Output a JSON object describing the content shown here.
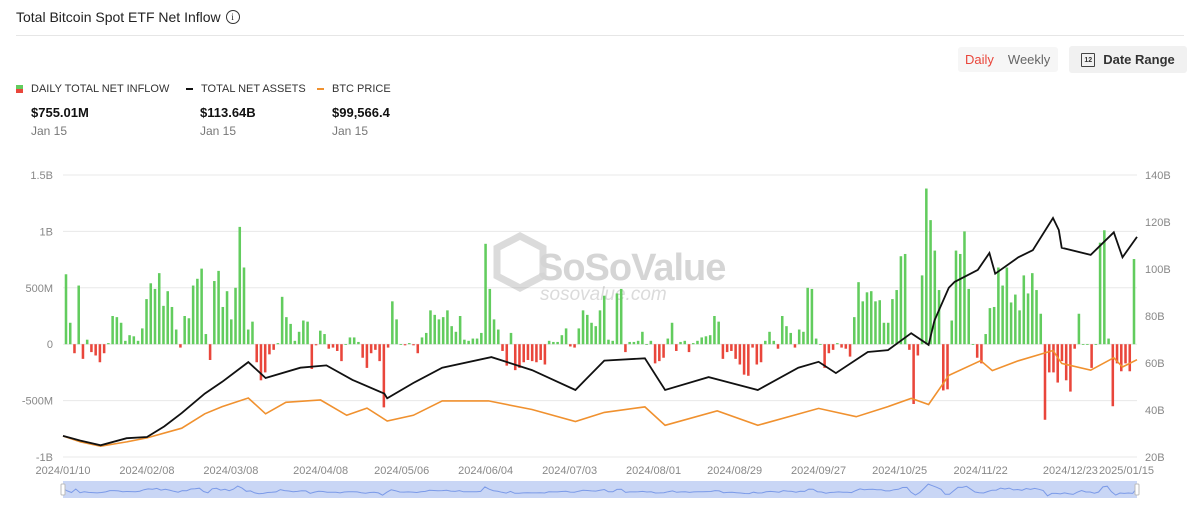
{
  "header": {
    "title": "Total Bitcoin Spot ETF Net Inflow",
    "info_icon": "info-circle-icon"
  },
  "controls": {
    "daily_label": "Daily",
    "weekly_label": "Weekly",
    "active": "Daily",
    "date_range_label": "Date Range",
    "calendar_icon": "calendar-icon",
    "calendar_day": "12"
  },
  "legend": [
    {
      "label": "DAILY TOTAL NET INFLOW",
      "value": "$755.01M",
      "date": "Jan 15"
    },
    {
      "label": "TOTAL NET ASSETS",
      "value": "$113.64B",
      "date": "Jan 15"
    },
    {
      "label": "BTC PRICE",
      "value": "$99,566.4",
      "date": "Jan 15"
    }
  ],
  "watermark": {
    "brand": "SoSoValue",
    "site": "sosovalue.com"
  },
  "colors": {
    "inflow": "#62cc5e",
    "outflow": "#e9463b",
    "assets": "#111111",
    "price": "#f0912f",
    "navigator": "#c9d6f5"
  },
  "chart_data": {
    "type": "bar+line",
    "x_range": [
      "2024/01/10",
      "2025/01/15"
    ],
    "x_ticks": [
      "2024/01/10",
      "2024/02/08",
      "2024/03/08",
      "2024/04/08",
      "2024/05/06",
      "2024/06/04",
      "2024/07/03",
      "2024/08/01",
      "2024/08/29",
      "2024/09/27",
      "2024/10/25",
      "2024/11/22",
      "2024/12/23",
      "2025/01/15"
    ],
    "left_axis": {
      "ticks": [
        "1.5B",
        "1B",
        "500M",
        "0",
        "-500M",
        "-1B"
      ],
      "ylim_millions": [
        -1000,
        1500
      ]
    },
    "right_axis": {
      "ticks": [
        "140B",
        "120B",
        "100B",
        "80B",
        "60B",
        "40B",
        "20B"
      ],
      "ylim_billions": [
        20,
        140
      ]
    },
    "grid": true,
    "series": [
      {
        "name": "DAILY TOTAL NET INFLOW",
        "type": "bar",
        "unit": "USD millions",
        "values": [
          620,
          190,
          -80,
          520,
          -130,
          40,
          -70,
          -100,
          -160,
          -80,
          10,
          250,
          240,
          190,
          30,
          80,
          70,
          30,
          140,
          400,
          540,
          490,
          630,
          340,
          470,
          330,
          130,
          -30,
          250,
          230,
          520,
          580,
          670,
          90,
          -140,
          560,
          650,
          330,
          470,
          220,
          500,
          1040,
          680,
          130,
          200,
          -160,
          -320,
          -250,
          -90,
          -50,
          10,
          420,
          240,
          180,
          30,
          110,
          210,
          200,
          -220,
          -10,
          120,
          90,
          -40,
          -30,
          -60,
          -150,
          0,
          60,
          60,
          20,
          -120,
          -210,
          -80,
          -50,
          -150,
          -560,
          -30,
          380,
          220,
          0,
          -10,
          10,
          -10,
          -80,
          60,
          100,
          300,
          260,
          220,
          240,
          300,
          160,
          110,
          250,
          40,
          30,
          50,
          50,
          100,
          890,
          490,
          220,
          130,
          -60,
          -190,
          100,
          -230,
          -210,
          -160,
          -140,
          -150,
          -160,
          -140,
          -180,
          30,
          20,
          20,
          80,
          140,
          -20,
          -30,
          140,
          300,
          260,
          190,
          160,
          300,
          430,
          40,
          30,
          450,
          490,
          -70,
          20,
          20,
          30,
          110,
          0,
          30,
          -170,
          -150,
          -120,
          50,
          190,
          -60,
          20,
          30,
          -70,
          10,
          30,
          60,
          70,
          80,
          250,
          200,
          -130,
          -70,
          -60,
          -130,
          -180,
          -270,
          -280,
          -30,
          -180,
          -160,
          30,
          110,
          30,
          -40,
          250,
          160,
          100,
          -30,
          130,
          110,
          500,
          490,
          50,
          0,
          -210,
          -80,
          -50,
          10,
          -30,
          -40,
          -110,
          240,
          550,
          380,
          460,
          470,
          380,
          390,
          190,
          190,
          400,
          480,
          780,
          800,
          -50,
          -530,
          -100,
          610,
          1380,
          1100,
          830,
          480,
          -410,
          -400,
          210,
          830,
          800,
          1000,
          490,
          0,
          -120,
          -170,
          90,
          320,
          330,
          680,
          520,
          680,
          370,
          440,
          300,
          610,
          450,
          630,
          480,
          270,
          -670,
          -250,
          -250,
          -340,
          -150,
          -320,
          -420,
          -40,
          270,
          0,
          0,
          -210,
          0,
          900,
          1010,
          50,
          -550,
          -170,
          -240,
          -170,
          -240,
          755
        ]
      },
      {
        "name": "TOTAL NET ASSETS",
        "type": "line",
        "unit": "USD billions",
        "points": [
          [
            "2024-01-10",
            29
          ],
          [
            "2024-01-16",
            27
          ],
          [
            "2024-01-23",
            25
          ],
          [
            "2024-02-01",
            28
          ],
          [
            "2024-02-08",
            28.5
          ],
          [
            "2024-02-14",
            33
          ],
          [
            "2024-02-20",
            38.7
          ],
          [
            "2024-02-28",
            47
          ],
          [
            "2024-03-05",
            52
          ],
          [
            "2024-03-14",
            60.4
          ],
          [
            "2024-03-20",
            53.6
          ],
          [
            "2024-04-01",
            58
          ],
          [
            "2024-04-10",
            59
          ],
          [
            "2024-04-19",
            52.8
          ],
          [
            "2024-04-30",
            47
          ],
          [
            "2024-05-01",
            45
          ],
          [
            "2024-05-10",
            51.5
          ],
          [
            "2024-05-20",
            58
          ],
          [
            "2024-06-06",
            62.5
          ],
          [
            "2024-06-20",
            57
          ],
          [
            "2024-07-05",
            48.5
          ],
          [
            "2024-07-15",
            61
          ],
          [
            "2024-07-29",
            62
          ],
          [
            "2024-08-05",
            48.5
          ],
          [
            "2024-08-20",
            54
          ],
          [
            "2024-09-06",
            48.5
          ],
          [
            "2024-09-20",
            58
          ],
          [
            "2024-09-27",
            60.5
          ],
          [
            "2024-10-03",
            55.7
          ],
          [
            "2024-10-14",
            64.7
          ],
          [
            "2024-10-21",
            65.5
          ],
          [
            "2024-10-29",
            72.7
          ],
          [
            "2024-11-04",
            67.7
          ],
          [
            "2024-11-06",
            78
          ],
          [
            "2024-11-11",
            92
          ],
          [
            "2024-11-13",
            94.5
          ],
          [
            "2024-11-21",
            99.6
          ],
          [
            "2024-11-25",
            106.8
          ],
          [
            "2024-11-27",
            98
          ],
          [
            "2024-12-05",
            105
          ],
          [
            "2024-12-10",
            108
          ],
          [
            "2024-12-17",
            121.7
          ],
          [
            "2024-12-19",
            116.6
          ],
          [
            "2024-12-20",
            109
          ],
          [
            "2024-12-30",
            106
          ],
          [
            "2025-01-07",
            115.6
          ],
          [
            "2025-01-10",
            105
          ],
          [
            "2025-01-15",
            113.64
          ]
        ]
      },
      {
        "name": "BTC PRICE",
        "type": "line",
        "unit": "USD",
        "points": [
          [
            "2024-01-10",
            46600
          ],
          [
            "2024-01-16",
            42500
          ],
          [
            "2024-01-23",
            39500
          ],
          [
            "2024-02-01",
            42500
          ],
          [
            "2024-02-08",
            45300
          ],
          [
            "2024-02-20",
            52000
          ],
          [
            "2024-02-28",
            62000
          ],
          [
            "2024-03-05",
            67000
          ],
          [
            "2024-03-14",
            73000
          ],
          [
            "2024-03-20",
            62000
          ],
          [
            "2024-03-27",
            70000
          ],
          [
            "2024-04-08",
            71600
          ],
          [
            "2024-04-17",
            61000
          ],
          [
            "2024-04-24",
            66000
          ],
          [
            "2024-05-01",
            57000
          ],
          [
            "2024-05-10",
            61000
          ],
          [
            "2024-05-20",
            71000
          ],
          [
            "2024-06-05",
            71000
          ],
          [
            "2024-06-20",
            65000
          ],
          [
            "2024-07-05",
            56700
          ],
          [
            "2024-07-15",
            63000
          ],
          [
            "2024-07-29",
            66800
          ],
          [
            "2024-08-05",
            54000
          ],
          [
            "2024-08-23",
            64000
          ],
          [
            "2024-09-06",
            54000
          ],
          [
            "2024-09-27",
            65800
          ],
          [
            "2024-10-10",
            60000
          ],
          [
            "2024-10-21",
            67000
          ],
          [
            "2024-10-29",
            72700
          ],
          [
            "2024-11-04",
            68500
          ],
          [
            "2024-11-11",
            88700
          ],
          [
            "2024-11-22",
            98900
          ],
          [
            "2024-11-26",
            92000
          ],
          [
            "2024-12-05",
            98800
          ],
          [
            "2024-12-17",
            106000
          ],
          [
            "2024-12-20",
            97000
          ],
          [
            "2024-12-30",
            92300
          ],
          [
            "2025-01-07",
            101000
          ],
          [
            "2025-01-10",
            94500
          ],
          [
            "2025-01-15",
            99566.4
          ]
        ]
      }
    ]
  }
}
